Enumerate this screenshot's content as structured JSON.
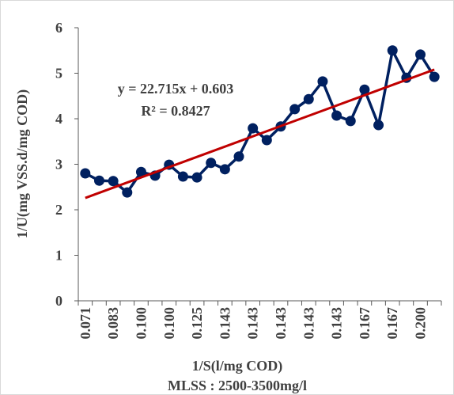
{
  "chart_data": {
    "type": "line",
    "xlabel": "1/S(l/mg COD)",
    "subtitle": "MLSS : 2500-3500mg/l",
    "ylabel": "1/U(mg VSS.d/mg COD)",
    "annotations": [
      "y = 22.715x + 0.603",
      "R² = 0.8427"
    ],
    "categories": [
      "0.071",
      null,
      "0.083",
      null,
      "0.100",
      null,
      "0.100",
      null,
      "0.125",
      null,
      "0.143",
      null,
      "0.143",
      null,
      "0.143",
      null,
      "0.143",
      null,
      "0.143",
      null,
      "0.167",
      null,
      "0.167",
      null,
      "0.200",
      null
    ],
    "series": [
      {
        "color": "#002060",
        "values": [
          2.8,
          2.64,
          2.63,
          2.38,
          2.83,
          2.75,
          2.99,
          2.73,
          2.71,
          3.03,
          2.89,
          3.17,
          3.79,
          3.53,
          3.83,
          4.21,
          4.43,
          4.82,
          4.07,
          3.95,
          4.64,
          3.86,
          5.5,
          4.9,
          5.41,
          4.92
        ]
      }
    ],
    "trendline": {
      "color": "#c00000",
      "start": 2.26,
      "end": 5.08
    },
    "ylim": [
      0,
      6
    ],
    "yticks": [
      0,
      1,
      2,
      3,
      4,
      5,
      6
    ],
    "grid": false
  }
}
